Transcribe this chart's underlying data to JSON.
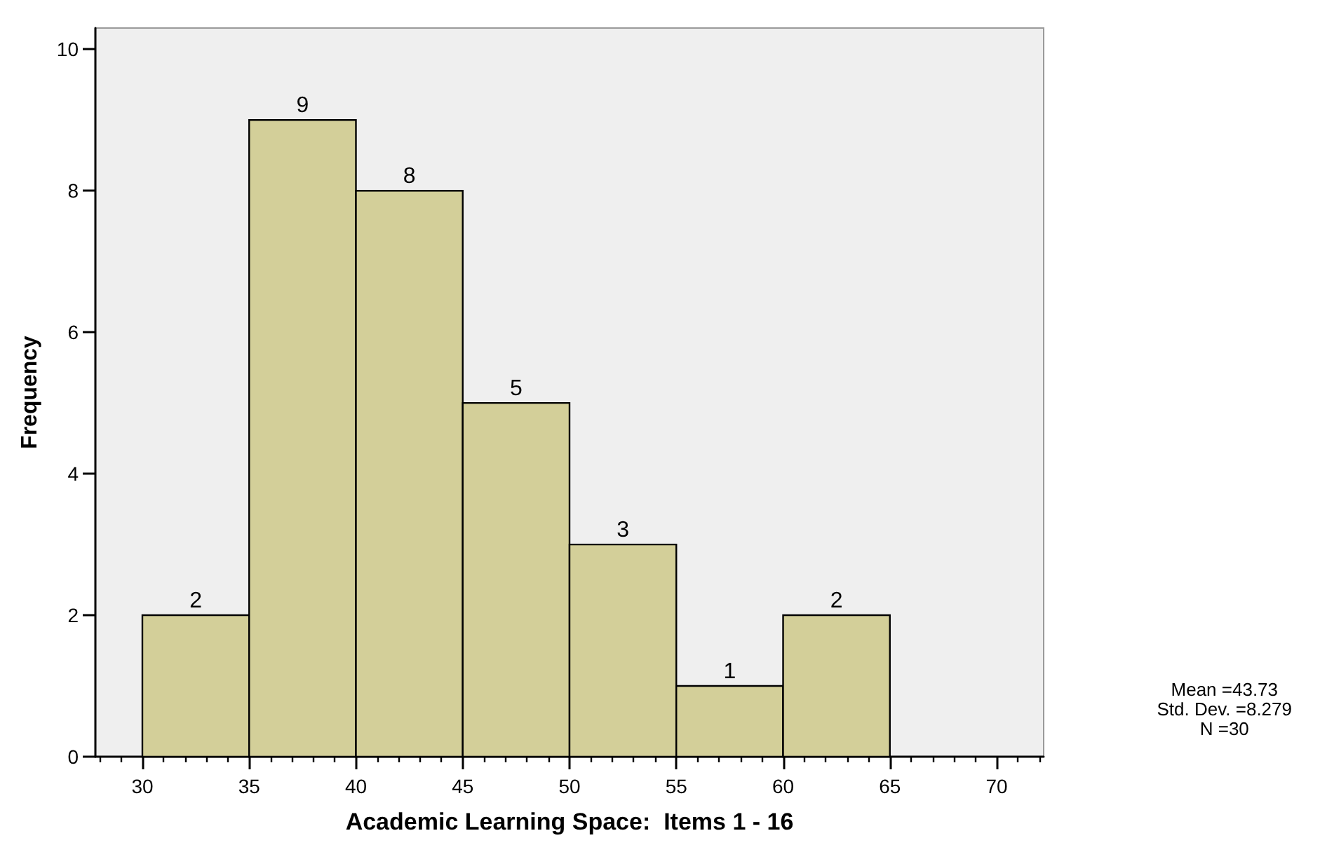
{
  "chart_data": {
    "type": "histogram",
    "xlabel": "Academic Learning Space:  Items 1 - 16",
    "ylabel": "Frequency",
    "bins": [
      30,
      35,
      40,
      45,
      50,
      55,
      60,
      65
    ],
    "values": [
      2,
      9,
      8,
      5,
      3,
      1,
      2
    ],
    "color": "#d3cf99",
    "data_labels": true,
    "xlim": [
      27.8,
      72.2
    ],
    "xticks": [
      {
        "value": 28,
        "label": null
      },
      {
        "value": 29,
        "label": null
      },
      30,
      {
        "value": 31,
        "label": null
      },
      {
        "value": 32,
        "label": null
      },
      {
        "value": 33,
        "label": null
      },
      {
        "value": 34,
        "label": null
      },
      35,
      {
        "value": 36,
        "label": null
      },
      {
        "value": 37,
        "label": null
      },
      {
        "value": 38,
        "label": null
      },
      {
        "value": 39,
        "label": null
      },
      40,
      {
        "value": 41,
        "label": null
      },
      {
        "value": 42,
        "label": null
      },
      {
        "value": 43,
        "label": null
      },
      {
        "value": 44,
        "label": null
      },
      45,
      {
        "value": 46,
        "label": null
      },
      {
        "value": 47,
        "label": null
      },
      {
        "value": 48,
        "label": null
      },
      {
        "value": 49,
        "label": null
      },
      50,
      {
        "value": 51,
        "label": null
      },
      {
        "value": 52,
        "label": null
      },
      {
        "value": 53,
        "label": null
      },
      {
        "value": 54,
        "label": null
      },
      55,
      {
        "value": 56,
        "label": null
      },
      {
        "value": 57,
        "label": null
      },
      {
        "value": 58,
        "label": null
      },
      {
        "value": 59,
        "label": null
      },
      60,
      {
        "value": 61,
        "label": null
      },
      {
        "value": 62,
        "label": null
      },
      {
        "value": 63,
        "label": null
      },
      {
        "value": 64,
        "label": null
      },
      65,
      {
        "value": 66,
        "label": null
      },
      {
        "value": 67,
        "label": null
      },
      {
        "value": 68,
        "label": null
      },
      {
        "value": 69,
        "label": null
      },
      70,
      {
        "value": 71,
        "label": null
      },
      {
        "value": 72,
        "label": null
      }
    ],
    "ylim": [
      0,
      10.3
    ],
    "yticks": [
      0,
      2,
      4,
      6,
      8,
      10
    ],
    "grid": false,
    "legend": false,
    "annotations": [
      "Mean =43.73\nStd. Dev. =8.279\nN =30"
    ]
  }
}
